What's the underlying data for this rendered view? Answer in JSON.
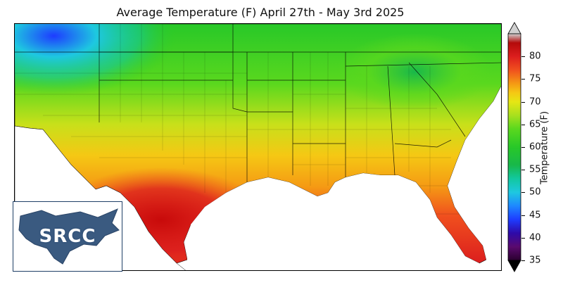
{
  "title": "Average Temperature (F) April 27th - May 3rd 2025",
  "colorbar": {
    "label": "Temperature (F)",
    "ticks": [
      35,
      40,
      45,
      50,
      55,
      60,
      65,
      70,
      75,
      80
    ],
    "range": [
      35,
      85
    ],
    "stops": [
      {
        "t": 35,
        "color": "#2a002e"
      },
      {
        "t": 38,
        "color": "#5a0a6e"
      },
      {
        "t": 41,
        "color": "#2e0aa8"
      },
      {
        "t": 44,
        "color": "#1e3cff"
      },
      {
        "t": 47,
        "color": "#1e88ff"
      },
      {
        "t": 50,
        "color": "#1ec8e0"
      },
      {
        "t": 53,
        "color": "#12c8a0"
      },
      {
        "t": 56,
        "color": "#18b84a"
      },
      {
        "t": 60,
        "color": "#28c828"
      },
      {
        "t": 64,
        "color": "#5ad81e"
      },
      {
        "t": 67,
        "color": "#a8e01e"
      },
      {
        "t": 70,
        "color": "#e6e614"
      },
      {
        "t": 72,
        "color": "#f5c814"
      },
      {
        "t": 74,
        "color": "#f59a14"
      },
      {
        "t": 77,
        "color": "#f0501e"
      },
      {
        "t": 80,
        "color": "#dc1e1e"
      },
      {
        "t": 83,
        "color": "#b40a0a"
      },
      {
        "t": 85,
        "color": "#d0d0d0"
      }
    ]
  },
  "logo": {
    "text": "SRCC",
    "color": "#3a5a80"
  },
  "map_colors": {
    "cold_high_terrain": "#1ec8e0",
    "cool_north": "#28c828",
    "mild_mid": "#a8e01e",
    "warm": "#f5b414",
    "hot": "#f0501e",
    "hottest_coast": "#dc1e1e",
    "water": "#ffffff",
    "borders": "#000000"
  }
}
